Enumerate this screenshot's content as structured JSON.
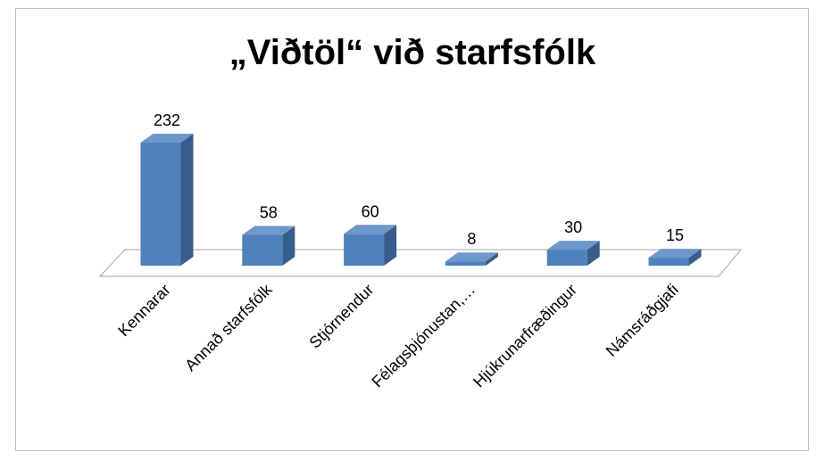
{
  "chart_data": {
    "type": "bar3d",
    "title": "„Viðtöl“ við starfsfólk",
    "categories": [
      "Kennarar",
      "Annað starfsfólk",
      "Stjórnendur",
      "Félagsþjónustan,…",
      "Hjúkrunarfræðingur",
      "Námsráðgjafi"
    ],
    "values": [
      232,
      58,
      60,
      8,
      30,
      15
    ],
    "color": "#4f81bd"
  }
}
